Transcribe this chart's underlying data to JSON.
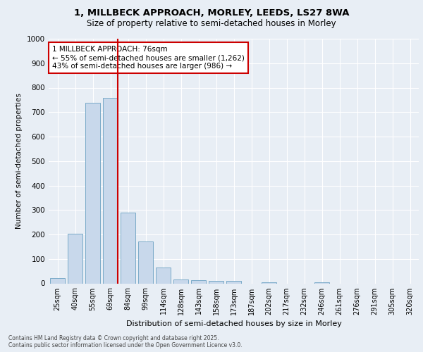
{
  "title_line1": "1, MILLBECK APPROACH, MORLEY, LEEDS, LS27 8WA",
  "title_line2": "Size of property relative to semi-detached houses in Morley",
  "xlabel": "Distribution of semi-detached houses by size in Morley",
  "ylabel": "Number of semi-detached properties",
  "categories": [
    "25sqm",
    "40sqm",
    "55sqm",
    "69sqm",
    "84sqm",
    "99sqm",
    "114sqm",
    "128sqm",
    "143sqm",
    "158sqm",
    "173sqm",
    "187sqm",
    "202sqm",
    "217sqm",
    "232sqm",
    "246sqm",
    "261sqm",
    "276sqm",
    "291sqm",
    "305sqm",
    "320sqm"
  ],
  "values": [
    22,
    202,
    738,
    757,
    290,
    170,
    65,
    17,
    13,
    10,
    10,
    0,
    5,
    0,
    0,
    4,
    0,
    0,
    0,
    0,
    0
  ],
  "bar_color": "#c8d8eb",
  "bar_edge_color": "#7aaac8",
  "vline_index": 3,
  "vline_color": "#cc0000",
  "annotation_text": "1 MILLBECK APPROACH: 76sqm\n← 55% of semi-detached houses are smaller (1,262)\n43% of semi-detached houses are larger (986) →",
  "annotation_box_color": "#cc0000",
  "ylim": [
    0,
    1000
  ],
  "yticks": [
    0,
    100,
    200,
    300,
    400,
    500,
    600,
    700,
    800,
    900,
    1000
  ],
  "footer": "Contains HM Land Registry data © Crown copyright and database right 2025.\nContains public sector information licensed under the Open Government Licence v3.0.",
  "bg_color": "#e8eef5",
  "grid_color": "#ffffff",
  "title1_fontsize": 9.5,
  "title2_fontsize": 8.5
}
